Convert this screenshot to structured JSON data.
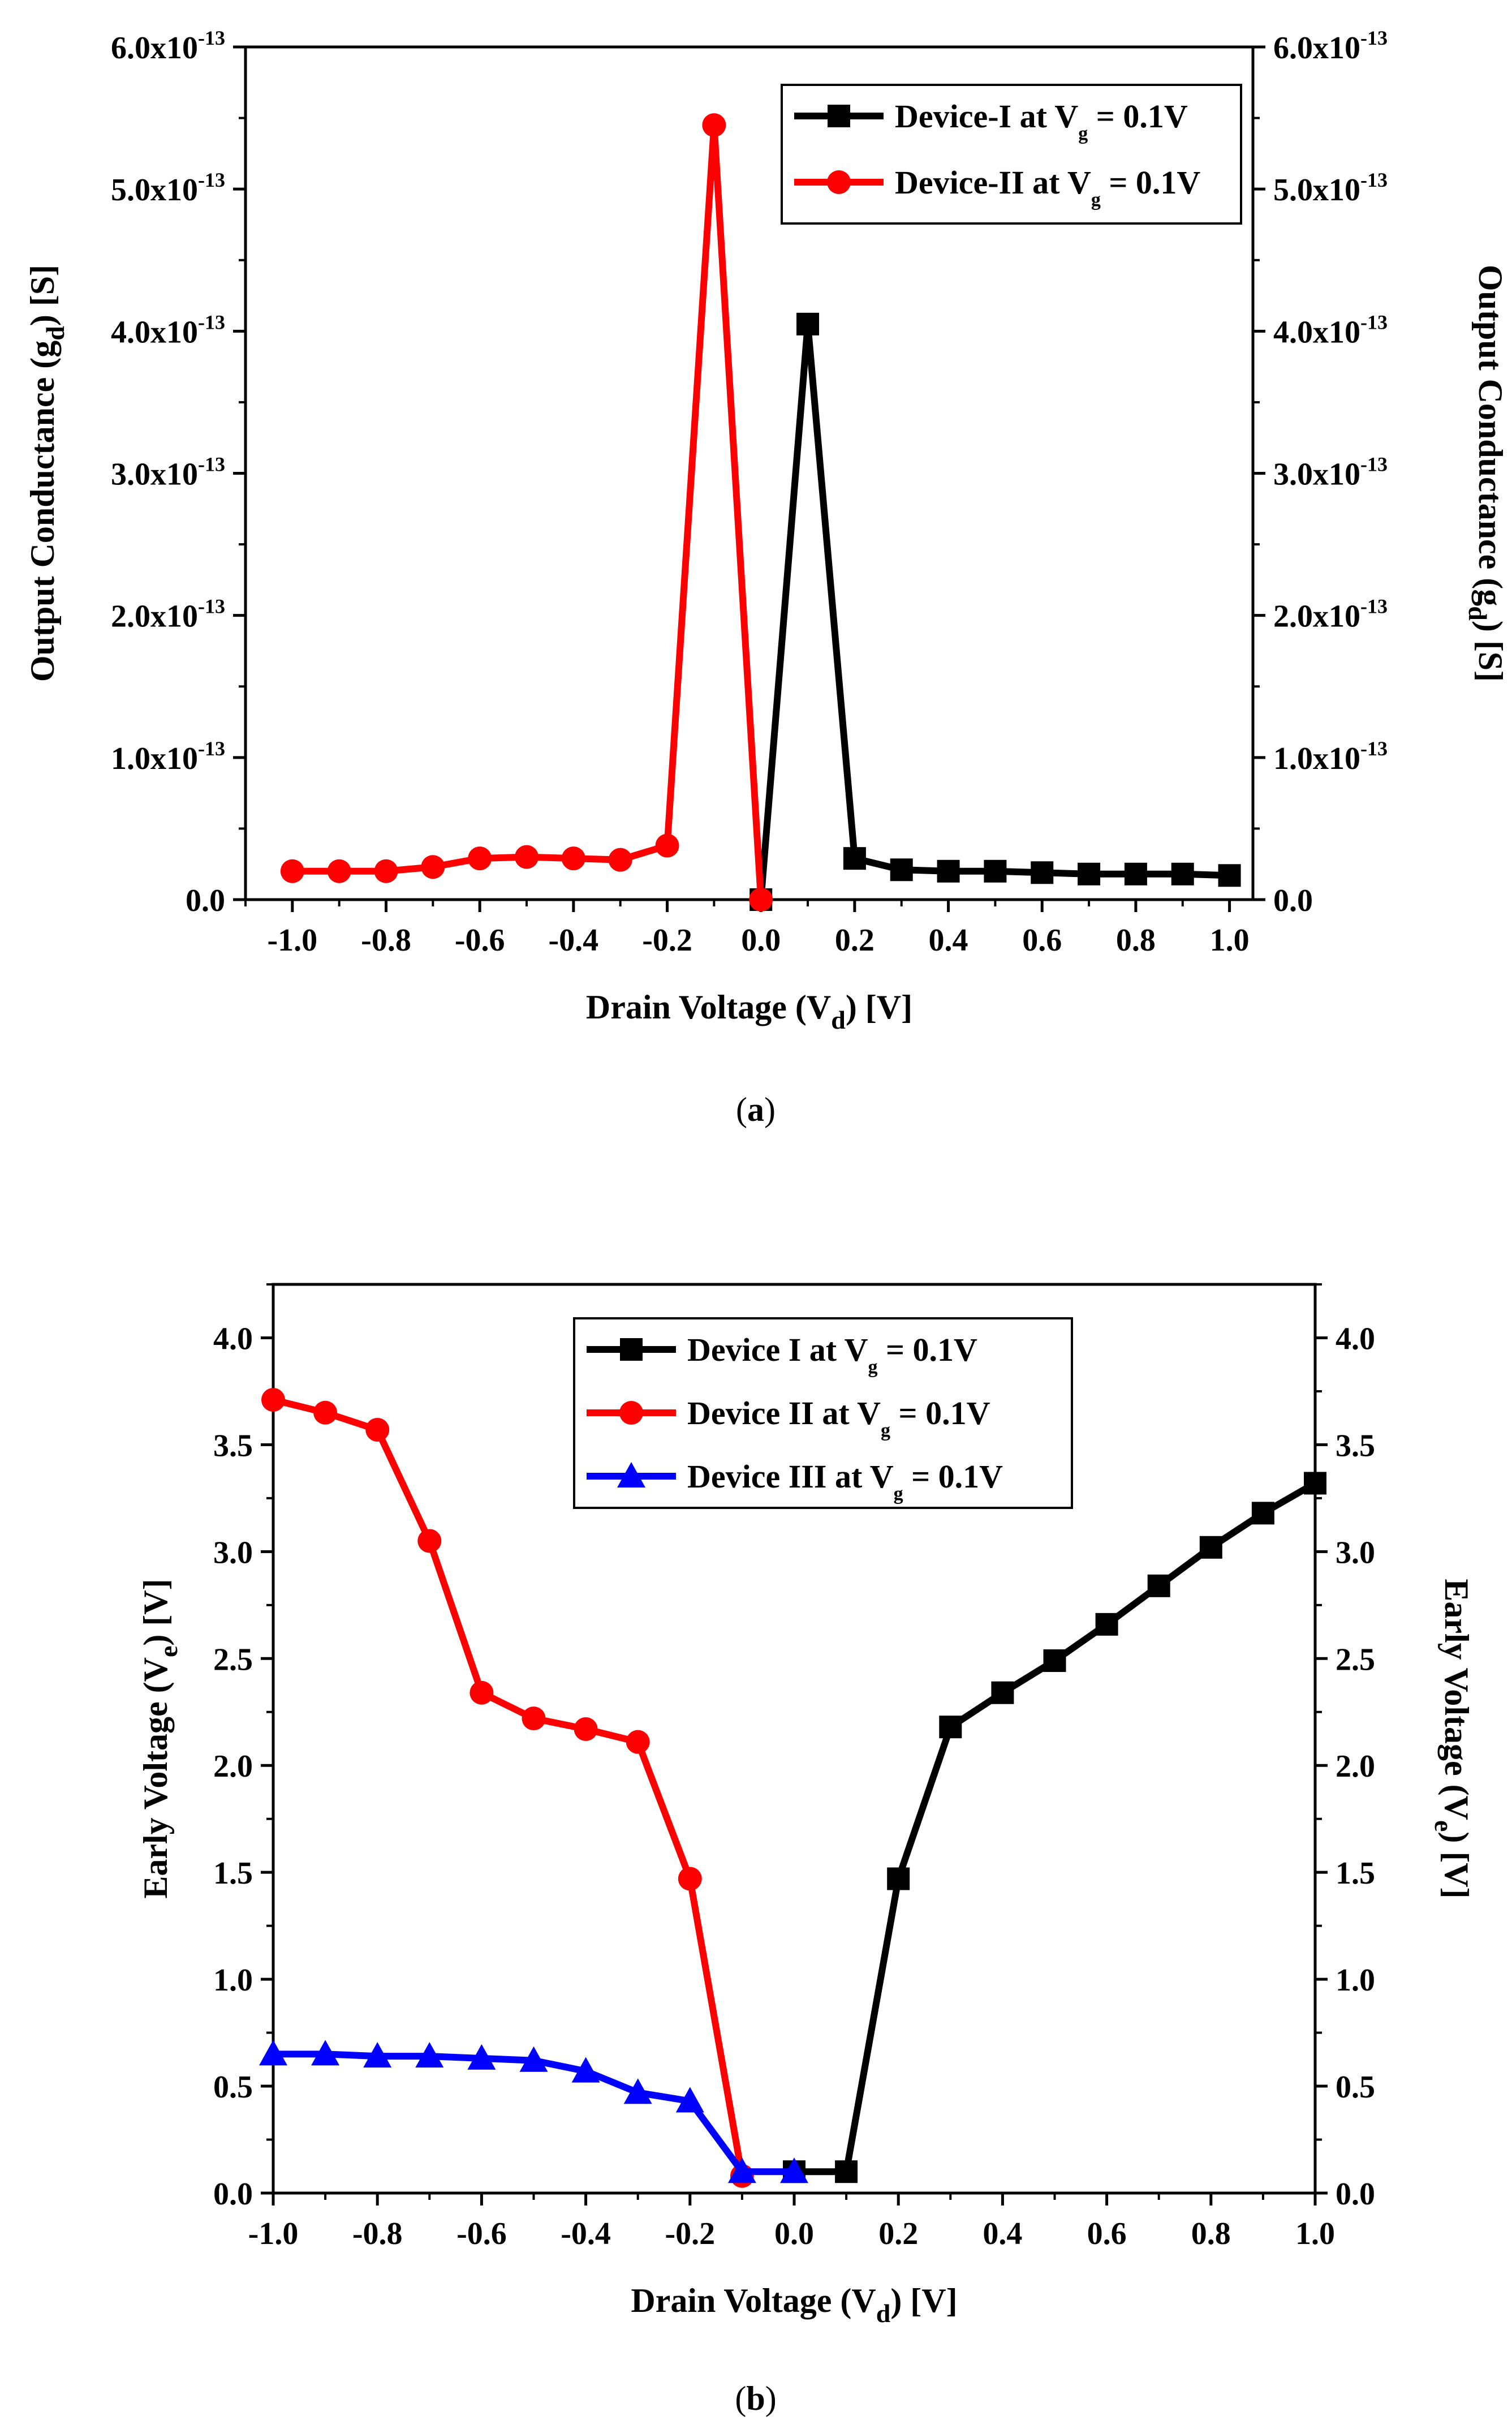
{
  "chart_data": [
    {
      "id": "a",
      "type": "line",
      "caption": "a",
      "title": "",
      "xlabel": {
        "text": "Drain Voltage (V",
        "sub": "d",
        "tail": ") [V]"
      },
      "ylabel": {
        "text": "Output Conductance (g",
        "sub": "d",
        "tail": ") [S]"
      },
      "y2label": {
        "text": "Output Conductance (g",
        "sub": "d",
        "tail": ") [S]"
      },
      "xlim": [
        -1.1,
        1.05
      ],
      "ylim": [
        0,
        6e-13
      ],
      "x_ticks": [
        -1.0,
        -0.8,
        -0.6,
        -0.4,
        -0.2,
        0.0,
        0.2,
        0.4,
        0.6,
        0.8,
        1.0
      ],
      "x_tick_labels": [
        "-1.0",
        "-0.8",
        "-0.6",
        "-0.4",
        "-0.2",
        "0.0",
        "0.2",
        "0.4",
        "0.6",
        "0.8",
        "1.0"
      ],
      "y_ticks": [
        0,
        1e-13,
        2e-13,
        3e-13,
        4e-13,
        5e-13,
        6e-13
      ],
      "y_tick_labels": [
        {
          "base": "0.0",
          "exp": ""
        },
        {
          "base": "1.0x10",
          "exp": "-13"
        },
        {
          "base": "2.0x10",
          "exp": "-13"
        },
        {
          "base": "3.0x10",
          "exp": "-13"
        },
        {
          "base": "4.0x10",
          "exp": "-13"
        },
        {
          "base": "5.0x10",
          "exp": "-13"
        },
        {
          "base": "6.0x10",
          "exp": "-13"
        }
      ],
      "legend_position": "top-right",
      "series": [
        {
          "name": {
            "text": "Device-I at V",
            "sub": "g",
            "tail": " = 0.1V"
          },
          "color": "#000000",
          "marker": "square",
          "x": [
            0.0,
            0.1,
            0.2,
            0.3,
            0.4,
            0.5,
            0.6,
            0.7,
            0.8,
            0.9,
            1.0
          ],
          "y": [
            0,
            4.05e-13,
            2.9e-14,
            2.1e-14,
            2e-14,
            2e-14,
            1.9e-14,
            1.8e-14,
            1.8e-14,
            1.8e-14,
            1.7e-14
          ]
        },
        {
          "name": {
            "text": "Device-II at V",
            "sub": "g",
            "tail": " = 0.1V"
          },
          "color": "#ff0000",
          "marker": "circle",
          "x": [
            -1.0,
            -0.9,
            -0.8,
            -0.7,
            -0.6,
            -0.5,
            -0.4,
            -0.3,
            -0.2,
            -0.1,
            0.0
          ],
          "y": [
            2e-14,
            2e-14,
            2e-14,
            2.3e-14,
            2.9e-14,
            3e-14,
            2.9e-14,
            2.8e-14,
            3.8e-14,
            5.45e-13,
            0
          ]
        }
      ]
    },
    {
      "id": "b",
      "type": "line",
      "caption": "b",
      "title": "",
      "xlabel": {
        "text": "Drain Voltage (V",
        "sub": "d",
        "tail": ") [V]"
      },
      "ylabel": {
        "text": "Early Voltage (V",
        "sub": "e",
        "tail": ") [V]"
      },
      "y2label": {
        "text": "Early Voltage (V",
        "sub": "e",
        "tail": ") [V]"
      },
      "xlim": [
        -1.0,
        1.0
      ],
      "ylim": [
        0,
        4.25
      ],
      "x_ticks": [
        -1.0,
        -0.8,
        -0.6,
        -0.4,
        -0.2,
        0.0,
        0.2,
        0.4,
        0.6,
        0.8,
        1.0
      ],
      "x_tick_labels": [
        "-1.0",
        "-0.8",
        "-0.6",
        "-0.4",
        "-0.2",
        "0.0",
        "0.2",
        "0.4",
        "0.6",
        "0.8",
        "1.0"
      ],
      "y_ticks": [
        0,
        0.5,
        1.0,
        1.5,
        2.0,
        2.5,
        3.0,
        3.5,
        4.0
      ],
      "y_tick_labels": [
        "0.0",
        "0.5",
        "1.0",
        "1.5",
        "2.0",
        "2.5",
        "3.0",
        "3.5",
        "4.0"
      ],
      "legend_position": "top-center",
      "series": [
        {
          "name": {
            "text": "Device I at V",
            "sub": "g",
            "tail": " = 0.1V"
          },
          "color": "#000000",
          "marker": "square",
          "x": [
            0.0,
            0.1,
            0.2,
            0.3,
            0.4,
            0.5,
            0.6,
            0.7,
            0.8,
            0.9,
            1.0
          ],
          "y": [
            0.1,
            0.1,
            1.47,
            2.18,
            2.34,
            2.49,
            2.66,
            2.84,
            3.02,
            3.18,
            3.32
          ]
        },
        {
          "name": {
            "text": "Device II at V",
            "sub": "g",
            "tail": " = 0.1V"
          },
          "color": "#ff0000",
          "marker": "circle",
          "x": [
            -1.0,
            -0.9,
            -0.8,
            -0.7,
            -0.6,
            -0.5,
            -0.4,
            -0.3,
            -0.2,
            -0.1
          ],
          "y": [
            3.71,
            3.65,
            3.57,
            3.05,
            2.34,
            2.22,
            2.17,
            2.11,
            1.47,
            0.08
          ]
        },
        {
          "name": {
            "text": "Device III at V",
            "sub": "g",
            "tail": " = 0.1V"
          },
          "color": "#0000ff",
          "marker": "triangle",
          "x": [
            -1.0,
            -0.9,
            -0.8,
            -0.7,
            -0.6,
            -0.5,
            -0.4,
            -0.3,
            -0.2,
            -0.1,
            0.0
          ],
          "y": [
            0.65,
            0.65,
            0.64,
            0.64,
            0.63,
            0.62,
            0.57,
            0.47,
            0.43,
            0.1,
            0.1
          ]
        }
      ]
    }
  ]
}
